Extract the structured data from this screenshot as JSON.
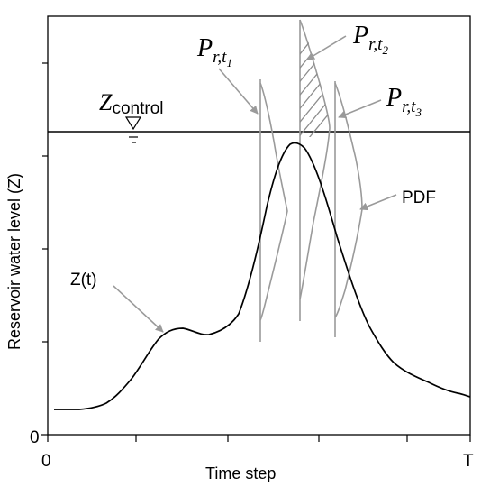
{
  "axes": {
    "x_label": "Time step",
    "y_label": "Reservoir water level (Z)",
    "x_start": "0",
    "x_end": "T",
    "y_zero": "0"
  },
  "control": {
    "symbol": "Z",
    "subscript": "control"
  },
  "labels": {
    "series": "Z(t)",
    "pdf": "PDF",
    "p_main": "P",
    "p_sub": "r,t",
    "p1_idx": "1",
    "p2_idx": "2",
    "p3_idx": "3"
  },
  "colors": {
    "curve": "#000000",
    "pdf": "#9a9a9a",
    "hatch": "#8c8c8c"
  }
}
